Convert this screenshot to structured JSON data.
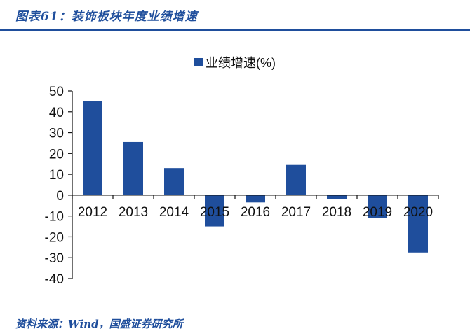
{
  "figure": {
    "title": "图表61：装饰板块年度业绩增速",
    "footer": "资料来源：Wind，国盛证券研究所"
  },
  "colors": {
    "bar": "#1f4e9c",
    "title": "#1f4e9c",
    "axis": "#111111"
  },
  "chart_data": {
    "type": "bar",
    "title": "",
    "xlabel": "",
    "ylabel": "",
    "categories": [
      "2012",
      "2013",
      "2014",
      "2015",
      "2016",
      "2017",
      "2018",
      "2019",
      "2020"
    ],
    "series": [
      {
        "name": "业绩增速(%)",
        "values": [
          45,
          25.5,
          13,
          -15,
          -3.5,
          14.5,
          -2,
          -11,
          -27.5
        ]
      }
    ],
    "ylim": [
      -40,
      50
    ],
    "yticks": [
      50,
      40,
      30,
      20,
      10,
      0,
      -10,
      -20,
      -30,
      -40
    ],
    "ytick_labels": [
      "50",
      "40",
      "30",
      "20",
      "10",
      "0",
      "-10",
      "-20",
      "-30",
      "-40"
    ],
    "grid": false,
    "legend": "top-center"
  }
}
